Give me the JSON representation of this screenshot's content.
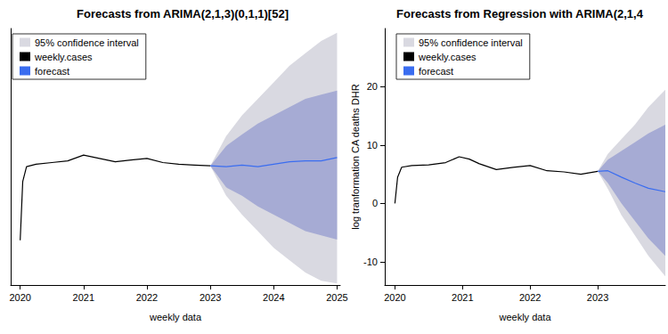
{
  "chart_data": [
    {
      "type": "line",
      "title": "Forecasts from ARIMA(2,1,3)(0,1,1)[52]",
      "xlabel": "weekly data",
      "xlim": [
        2019.85,
        2025.05
      ],
      "xticks": [
        2020,
        2021,
        2022,
        2023,
        2024,
        2025
      ],
      "ylim": [
        -10,
        21
      ],
      "tick_labels": "x",
      "grid": false,
      "legend": "upper left",
      "series": [
        {
          "name": "weekly.cases",
          "color": "#000000",
          "x": [
            2020.0,
            2020.04,
            2020.1,
            2020.25,
            2020.5,
            2020.75,
            2021.0,
            2021.25,
            2021.5,
            2021.75,
            2022.0,
            2022.25,
            2022.5,
            2022.75,
            2023.0
          ],
          "values": [
            -4.6,
            2.5,
            4.3,
            4.6,
            4.8,
            5.0,
            5.7,
            5.3,
            4.9,
            5.1,
            5.3,
            4.8,
            4.6,
            4.5,
            4.4
          ]
        },
        {
          "name": "forecast",
          "color": "#3a6df0",
          "x": [
            2023.0,
            2023.25,
            2023.5,
            2023.75,
            2024.0,
            2024.25,
            2024.5,
            2024.75,
            2025.0
          ],
          "values": [
            4.4,
            4.3,
            4.5,
            4.3,
            4.6,
            4.9,
            5.0,
            5.0,
            5.4
          ]
        }
      ],
      "bands": [
        {
          "name": "95% confidence interval",
          "color": "#d9d9e1",
          "x": [
            2023.0,
            2023.25,
            2023.5,
            2023.75,
            2024.0,
            2024.25,
            2024.5,
            2024.75,
            2025.0
          ],
          "lower": [
            4.4,
            0.8,
            -1.5,
            -3.5,
            -5.5,
            -7,
            -8.5,
            -9.5,
            -9.8
          ],
          "upper": [
            4.4,
            8,
            10.5,
            12.5,
            14.5,
            16.5,
            18,
            19.5,
            20.5
          ]
        },
        {
          "color": "#a6abd4",
          "x": [
            2023.0,
            2023.25,
            2023.5,
            2023.75,
            2024.0,
            2024.25,
            2024.5,
            2024.75,
            2025.0
          ],
          "lower": [
            4.4,
            1.8,
            0.8,
            -0.5,
            -1.5,
            -2.5,
            -3.5,
            -4,
            -4.5
          ],
          "upper": [
            4.4,
            6.8,
            8.2,
            9.5,
            10.5,
            11.5,
            12.5,
            13,
            13.5
          ]
        }
      ]
    },
    {
      "type": "line",
      "title": "Forecasts from Regression with ARIMA(2,1,4",
      "xlabel": "weekly data",
      "ylabel": "log tranformation CA deaths DHR",
      "xlim": [
        2019.85,
        2024.0
      ],
      "xticks": [
        2020,
        2021,
        2022,
        2023
      ],
      "ylim": [
        -14,
        30
      ],
      "yticks": [
        -10,
        0,
        10,
        20
      ],
      "grid": false,
      "legend": "upper left",
      "series": [
        {
          "name": "weekly.cases",
          "color": "#000000",
          "x": [
            2020.0,
            2020.04,
            2020.1,
            2020.25,
            2020.5,
            2020.75,
            2020.95,
            2021.1,
            2021.25,
            2021.5,
            2021.75,
            2022.0,
            2022.25,
            2022.5,
            2022.75,
            2023.0
          ],
          "values": [
            0,
            4.5,
            6.2,
            6.5,
            6.6,
            7.0,
            8.0,
            7.6,
            6.8,
            5.8,
            6.2,
            6.5,
            5.6,
            5.4,
            5.0,
            5.5
          ]
        },
        {
          "name": "forecast",
          "color": "#3a6df0",
          "x": [
            2023.0,
            2023.15,
            2023.35,
            2023.55,
            2023.75,
            2024.0
          ],
          "values": [
            5.5,
            5.6,
            4.5,
            3.5,
            2.6,
            2.0
          ]
        }
      ],
      "bands": [
        {
          "name": "95% confidence interval",
          "color": "#d9d9e1",
          "x": [
            2023.0,
            2023.15,
            2023.35,
            2023.55,
            2023.75,
            2024.0
          ],
          "lower": [
            5.5,
            2.5,
            -2,
            -5.5,
            -9,
            -12.5
          ],
          "upper": [
            5.5,
            8.5,
            11,
            13.5,
            16.5,
            19.5
          ]
        },
        {
          "color": "#a6abd4",
          "x": [
            2023.0,
            2023.15,
            2023.35,
            2023.55,
            2023.75,
            2024.0
          ],
          "lower": [
            5.5,
            3.5,
            0,
            -3,
            -6,
            -9
          ],
          "upper": [
            5.5,
            7.5,
            9,
            10.5,
            12,
            13.5
          ]
        }
      ]
    }
  ]
}
